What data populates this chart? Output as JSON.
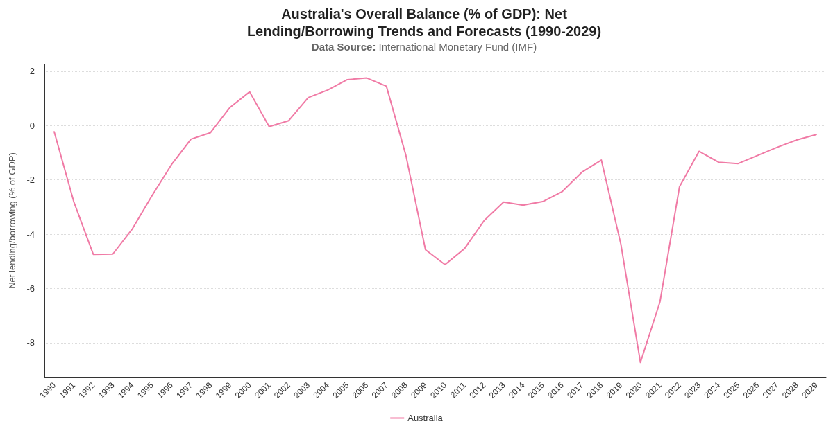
{
  "chart_data": {
    "type": "line",
    "title": "Australia's Overall Balance (% of GDP): Net Lending/Borrowing Trends and Forecasts (1990-2029)",
    "subtitle": "Data Source: International Monetary Fund (IMF)",
    "ylabel": "Net lending/borrowing (% of GDP)",
    "categories": [
      "1990",
      "1991",
      "1992",
      "1993",
      "1994",
      "1995",
      "1996",
      "1997",
      "1998",
      "1999",
      "2000",
      "2001",
      "2002",
      "2003",
      "2004",
      "2005",
      "2006",
      "2007",
      "2008",
      "2009",
      "2010",
      "2011",
      "2012",
      "2013",
      "2014",
      "2015",
      "2016",
      "2017",
      "2018",
      "2019",
      "2020",
      "2021",
      "2022",
      "2023",
      "2024",
      "2025",
      "2026",
      "2027",
      "2028",
      "2029"
    ],
    "series": [
      {
        "name": "Australia",
        "color": "#f07aa5",
        "values": [
          -0.23,
          -2.8,
          -4.74,
          -4.73,
          -3.8,
          -2.59,
          -1.44,
          -0.5,
          -0.26,
          0.67,
          1.24,
          -0.04,
          0.18,
          1.03,
          1.31,
          1.69,
          1.75,
          1.45,
          -1.1,
          -4.57,
          -5.12,
          -4.53,
          -3.5,
          -2.82,
          -2.93,
          -2.8,
          -2.43,
          -1.72,
          -1.27,
          -4.37,
          -8.72,
          -6.49,
          -2.25,
          -0.95,
          -1.35,
          -1.4,
          -1.1,
          -0.8,
          -0.53,
          -0.33
        ]
      }
    ],
    "ylim": [
      -9.25,
      2.25
    ],
    "yticks": [
      -8,
      -6,
      -4,
      -2,
      0,
      2
    ],
    "grid": "y",
    "legend": "bottom",
    "marker": "none",
    "line_style": "solid"
  }
}
